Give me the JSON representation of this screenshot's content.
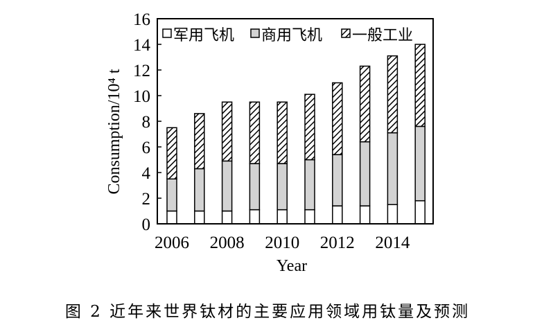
{
  "chart_data": {
    "type": "bar",
    "stacked": true,
    "categories": [
      "2006",
      "2007",
      "2008",
      "2009",
      "2010",
      "2011",
      "2012",
      "2013",
      "2014",
      "2015"
    ],
    "series": [
      {
        "name": "军用飞机",
        "pattern": "white",
        "values": [
          1.0,
          1.0,
          1.0,
          1.1,
          1.1,
          1.1,
          1.4,
          1.4,
          1.5,
          1.8
        ]
      },
      {
        "name": "商用飞机",
        "pattern": "gray",
        "color": "#d3d3d3",
        "values": [
          2.5,
          3.3,
          3.9,
          3.6,
          3.6,
          3.9,
          4.0,
          5.0,
          5.6,
          5.8
        ]
      },
      {
        "name": "一般工业",
        "pattern": "diagonal-hatch",
        "values": [
          4.0,
          4.3,
          4.6,
          4.8,
          4.8,
          5.1,
          5.6,
          5.9,
          6.0,
          6.4
        ]
      }
    ],
    "xlabel": "Year",
    "ylabel": "Consumption/10⁴ t",
    "ylim": [
      0,
      16
    ],
    "yticks": [
      0,
      2,
      4,
      6,
      8,
      10,
      12,
      14,
      16
    ],
    "xticklabels": [
      "2006",
      "2008",
      "2010",
      "2012",
      "2014"
    ],
    "grid": false,
    "legend": "top"
  },
  "caption": "图 2  近年来世界钛材的主要应用领域用钛量及预测"
}
